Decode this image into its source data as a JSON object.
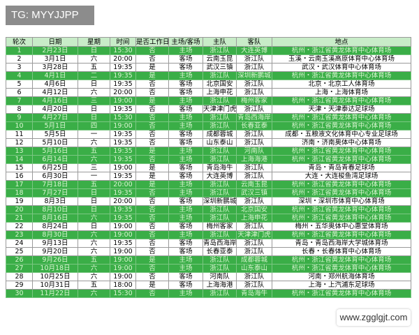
{
  "watermark": {
    "top": "TG: MYYJJPP",
    "bottom": "www.zgglgjt.com"
  },
  "table": {
    "header": [
      "轮次",
      "日期",
      "星期",
      "时间",
      "是否工作日",
      "主场/客场",
      "主队",
      "客队",
      "地点"
    ],
    "rows": [
      [
        "1",
        "2月23日",
        "日",
        "15:30",
        "否",
        "主场",
        "浙江队",
        "大连英博",
        "杭州・浙江省黄龙体育中心体育场"
      ],
      [
        "2",
        "3月1日",
        "六",
        "20:00",
        "否",
        "客场",
        "云南玉昆",
        "浙江队",
        "玉溪・云南玉溪高原体育中心体育场"
      ],
      [
        "3",
        "3月28日",
        "五",
        "19:35",
        "是",
        "客场",
        "武汉三镇",
        "浙江队",
        "武汉・武汉体育中心体育场"
      ],
      [
        "4",
        "4月1日",
        "二",
        "19:35",
        "是",
        "主场",
        "浙江队",
        "深圳新鹏城",
        "杭州・浙江省黄龙体育中心体育场"
      ],
      [
        "5",
        "4月6日",
        "日",
        "19:35",
        "否",
        "客场",
        "北京国安",
        "浙江队",
        "北京・北京工人体育场"
      ],
      [
        "6",
        "4月12日",
        "六",
        "20:00",
        "否",
        "客场",
        "上海申花",
        "浙江队",
        "上海・上海体育场"
      ],
      [
        "7",
        "4月16日",
        "三",
        "19:00",
        "是",
        "主场",
        "浙江队",
        "梅州客家",
        "杭州・浙江省黄龙体育中心体育场"
      ],
      [
        "8",
        "4月20日",
        "日",
        "19:35",
        "否",
        "客场",
        "天津津门虎",
        "浙江队",
        "天津・天津泰达足球场"
      ],
      [
        "9",
        "4月27日",
        "日",
        "15:30",
        "否",
        "主场",
        "浙江队",
        "青岛西海岸",
        "杭州・浙江省黄龙体育中心体育场"
      ],
      [
        "10",
        "5月1日",
        "四",
        "19:00",
        "否",
        "主场",
        "浙江队",
        "长春亚泰",
        "杭州・浙江省黄龙体育中心体育场"
      ],
      [
        "11",
        "5月5日",
        "一",
        "19:35",
        "否",
        "客场",
        "成都蓉城",
        "浙江队",
        "成都・五粮液文化体育中心专业足球场"
      ],
      [
        "12",
        "5月10日",
        "六",
        "19:35",
        "否",
        "客场",
        "山东泰山",
        "浙江队",
        "济南・济南奥体中心体育场"
      ],
      [
        "13",
        "5月16日",
        "五",
        "19:35",
        "是",
        "主场",
        "浙江队",
        "河南队",
        "杭州・浙江省黄龙体育中心体育场"
      ],
      [
        "14",
        "6月14日",
        "六",
        "19:35",
        "否",
        "主场",
        "浙江队",
        "上海海港",
        "杭州・浙江省黄龙体育中心体育场"
      ],
      [
        "15",
        "6月25日",
        "三",
        "19:00",
        "是",
        "客场",
        "青岛海牛",
        "浙江队",
        "青岛・青岛青春足球场"
      ],
      [
        "16",
        "6月30日",
        "一",
        "19:35",
        "是",
        "客场",
        "大连英博",
        "浙江队",
        "大连・大连梭鱼湾足球场"
      ],
      [
        "17",
        "7月18日",
        "五",
        "20:00",
        "是",
        "主场",
        "浙江队",
        "云南玉昆",
        "杭州・浙江省黄龙体育中心体育场"
      ],
      [
        "18",
        "7月27日",
        "日",
        "19:35",
        "否",
        "主场",
        "浙江队",
        "武汉三镇",
        "杭州・浙江省黄龙体育中心体育场"
      ],
      [
        "19",
        "8月3日",
        "日",
        "20:00",
        "否",
        "客场",
        "深圳新鹏城",
        "浙江队",
        "深圳・深圳市体育中心体育场"
      ],
      [
        "20",
        "8月10日",
        "日",
        "19:35",
        "否",
        "主场",
        "浙江队",
        "北京国安",
        "杭州・浙江省黄龙体育中心体育场"
      ],
      [
        "21",
        "8月16日",
        "六",
        "19:35",
        "否",
        "主场",
        "浙江队",
        "上海申花",
        "杭州・浙江省黄龙体育中心体育场"
      ],
      [
        "22",
        "8月24日",
        "日",
        "19:00",
        "否",
        "客场",
        "梅州客家",
        "浙江队",
        "梅州・五华奥体中心惠堂体育场"
      ],
      [
        "23",
        "8月30日",
        "六",
        "19:00",
        "否",
        "主场",
        "浙江队",
        "天津津门虎",
        "杭州・浙江省黄龙体育中心体育场"
      ],
      [
        "24",
        "9月13日",
        "六",
        "19:35",
        "否",
        "客场",
        "青岛西海岸",
        "浙江队",
        "青岛・青岛西海岸大学城体育场"
      ],
      [
        "25",
        "9月20日",
        "六",
        "19:00",
        "否",
        "客场",
        "长春亚泰",
        "浙江队",
        "长春・长春体育中心体育场"
      ],
      [
        "26",
        "9月26日",
        "五",
        "19:00",
        "是",
        "主场",
        "浙江队",
        "成都蓉城",
        "杭州・浙江省黄龙体育中心体育场"
      ],
      [
        "27",
        "10月18日",
        "六",
        "19:00",
        "否",
        "主场",
        "浙江队",
        "山东泰山",
        "杭州・浙江省黄龙体育中心体育场"
      ],
      [
        "28",
        "10月25日",
        "六",
        "19:00",
        "否",
        "客场",
        "河南队",
        "浙江队",
        "河南・郑州航海体育场"
      ],
      [
        "29",
        "10月31日",
        "五",
        "18:00",
        "是",
        "客场",
        "上海海港",
        "浙江队",
        "上海・上汽浦东足球场"
      ],
      [
        "30",
        "11月22日",
        "六",
        "15:30",
        "否",
        "主场",
        "浙江队",
        "青岛海牛",
        "杭州・浙江省黄龙体育中心体育场"
      ]
    ]
  }
}
